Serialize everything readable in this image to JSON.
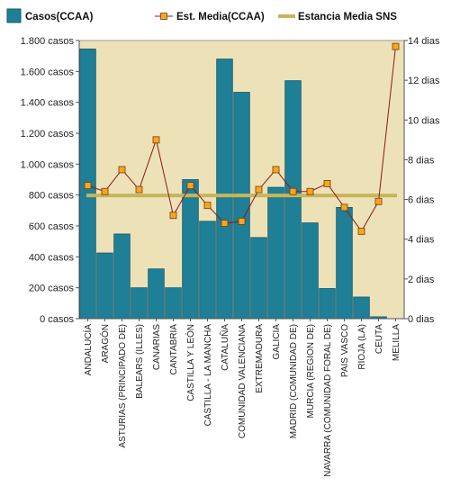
{
  "chart_data": {
    "type": "bar",
    "categories": [
      "ANDALUCÍA",
      "ARAGÓN",
      "ASTURIAS (PRINCIPADO DE)",
      "BALEARS (ILLES)",
      "CANARIAS",
      "CANTABRIA",
      "CASTILLA Y LEÓN",
      "CASTILLA - LA MANCHA",
      "CATALUÑA",
      "COMUNIDAD VALENCIANA",
      "EXTREMADURA",
      "GALICIA",
      "MADRID (COMUNIDAD DE)",
      "MURCIA (REGION DE)",
      "NAVARRA (COMUNIDAD FORAL DE)",
      "PAIS VASCO",
      "RIOJA (LA)",
      "CEUTA",
      "MELILLA"
    ],
    "series": [
      {
        "name": "Casos(CCAA)",
        "kind": "bar",
        "axis": "left",
        "color": "#1f7f96",
        "values": [
          1745,
          425,
          548,
          200,
          322,
          200,
          900,
          630,
          1680,
          1465,
          525,
          850,
          1540,
          620,
          195,
          720,
          140,
          12,
          0
        ]
      },
      {
        "name": "Est. Media(CCAA)",
        "kind": "line",
        "axis": "right",
        "color": "#8b1a1a",
        "marker_color": "#f5a623",
        "values": [
          6.7,
          6.4,
          7.5,
          6.5,
          9.0,
          5.2,
          6.7,
          5.7,
          4.8,
          4.9,
          6.5,
          7.5,
          6.4,
          6.4,
          6.8,
          5.6,
          4.4,
          5.9,
          13.7
        ]
      },
      {
        "name": "Estancia Media SNS",
        "kind": "reference",
        "axis": "right",
        "color": "#c8b45a",
        "value": 6.2
      }
    ],
    "left_axis": {
      "ylim": [
        0,
        1800
      ],
      "ticks": [
        {
          "value": 0,
          "label": "0 casos"
        },
        {
          "value": 200,
          "label": "200 casos"
        },
        {
          "value": 400,
          "label": "400 casos"
        },
        {
          "value": 600,
          "label": "600 casos"
        },
        {
          "value": 800,
          "label": "800 casos"
        },
        {
          "value": 1000,
          "label": "1.000 casos"
        },
        {
          "value": 1200,
          "label": "1.200 casos"
        },
        {
          "value": 1400,
          "label": "1.400 casos"
        },
        {
          "value": 1600,
          "label": "1.600 casos"
        },
        {
          "value": 1800,
          "label": "1.800 casos"
        }
      ]
    },
    "right_axis": {
      "ylim": [
        0,
        14
      ],
      "ticks": [
        {
          "value": 0,
          "label": "0 dias"
        },
        {
          "value": 2,
          "label": "2 dias"
        },
        {
          "value": 4,
          "label": "4 dias"
        },
        {
          "value": 6,
          "label": "6 dias"
        },
        {
          "value": 8,
          "label": "8 dias"
        },
        {
          "value": 10,
          "label": "10 dias"
        },
        {
          "value": 12,
          "label": "12 dias"
        },
        {
          "value": 14,
          "label": "14 dias"
        }
      ]
    },
    "legend_position": "top",
    "grid": false,
    "plot_background": "#ede1b8"
  }
}
